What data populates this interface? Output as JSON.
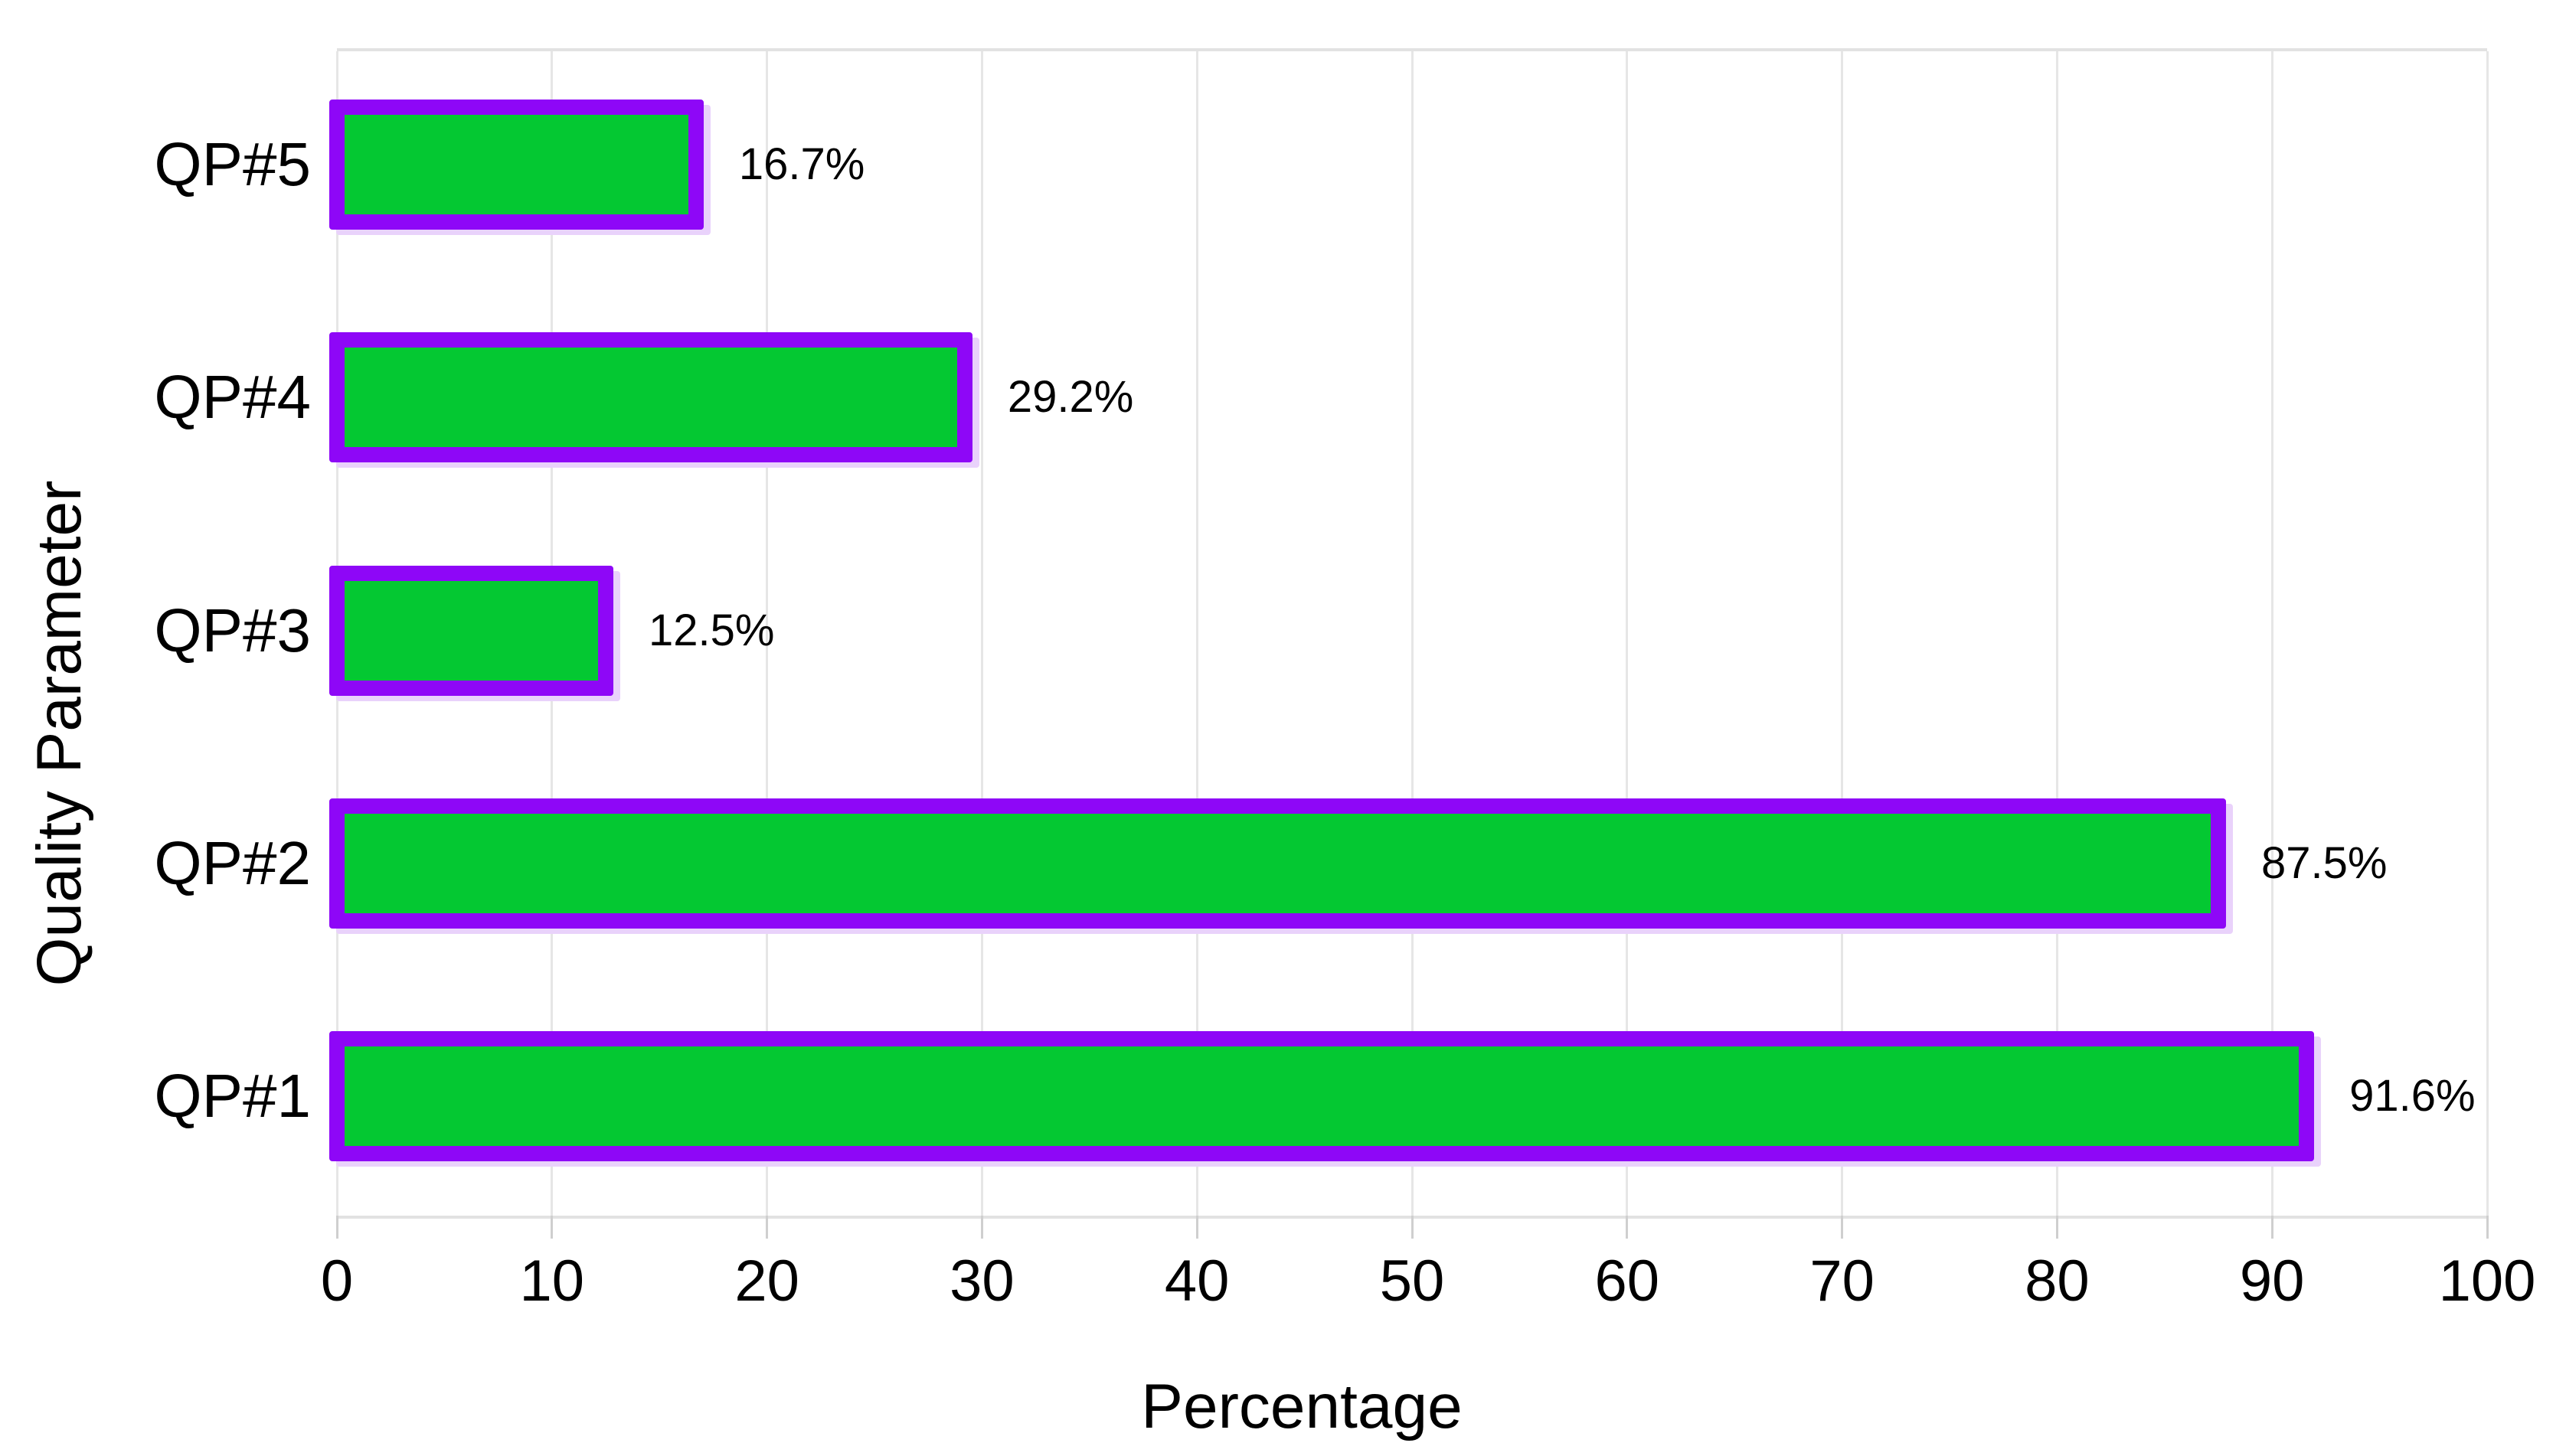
{
  "chart_data": {
    "type": "bar",
    "orientation": "horizontal",
    "title": "",
    "xlabel": "Percentage",
    "ylabel": "Quality Parameter",
    "categories": [
      "QP#5",
      "QP#4",
      "QP#3",
      "QP#2",
      "QP#1"
    ],
    "values": [
      16.7,
      29.2,
      12.5,
      87.5,
      91.6
    ],
    "value_labels": [
      "16.7%",
      "29.2%",
      "12.5%",
      "87.5%",
      "91.6%"
    ],
    "xlim": [
      0,
      100
    ],
    "xticks": [
      0,
      10,
      20,
      30,
      40,
      50,
      60,
      70,
      80,
      90,
      100
    ],
    "grid": "vertical-gridlines-on",
    "legend": "none",
    "colors": {
      "bar_fill": "#04c832",
      "bar_border": "#8e07f7",
      "bar_shadow": "#e9d2fb",
      "gridline": "#e6e6e6",
      "axis_line": "#e2e2e2",
      "tick": "#cfcfcf",
      "text": "#000000",
      "background": "#ffffff"
    }
  }
}
